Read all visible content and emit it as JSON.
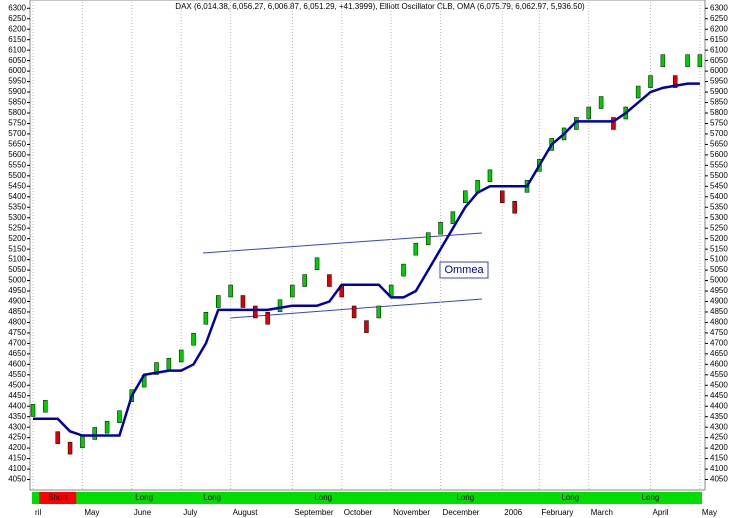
{
  "chart_data": {
    "type": "ohlc",
    "title": "DAX (6,014.38, 6,056.27, 6,006.87, 6,051.29, +41.3999), Elliott Oscillator CLB, OMA (6,075.79, 6,062.97, 5,936.50)",
    "annotation": "Ommea",
    "categories": [
      "ril",
      null,
      null,
      null,
      "May",
      null,
      null,
      null,
      "June",
      null,
      null,
      null,
      "July",
      null,
      null,
      null,
      "August",
      null,
      null,
      null,
      null,
      "September",
      null,
      null,
      null,
      "October",
      null,
      null,
      null,
      "November",
      null,
      null,
      null,
      "December",
      null,
      null,
      null,
      null,
      "2006",
      null,
      null,
      "February",
      null,
      null,
      null,
      "March",
      null,
      null,
      null,
      null,
      "April",
      null,
      null,
      null,
      "May"
    ],
    "series": [
      {
        "name": "DAX",
        "color": "#000000",
        "up_color": "#00cc00",
        "down_color": "#dd0000",
        "values": [
          4380,
          4400,
          4250,
          4200,
          4230,
          4270,
          4300,
          4350,
          4450,
          4520,
          4580,
          4600,
          4640,
          4720,
          4820,
          4900,
          4950,
          4900,
          4850,
          4820,
          4880,
          4950,
          5000,
          5080,
          5000,
          4950,
          4850,
          4780,
          4850,
          4950,
          5050,
          5150,
          5200,
          5250,
          5300,
          5400,
          5450,
          5500,
          5400,
          5350,
          5450,
          5550,
          5650,
          5700,
          5750,
          5800,
          5850,
          5750,
          5800,
          5900,
          5950,
          6050,
          5950,
          6050,
          6050
        ]
      },
      {
        "name": "OMA",
        "color": "#0000aa",
        "values": [
          4340,
          4340,
          4340,
          4280,
          4260,
          4260,
          4260,
          4260,
          4450,
          4550,
          4560,
          4570,
          4570,
          4600,
          4700,
          4860,
          4860,
          4860,
          4860,
          4860,
          4870,
          4880,
          4880,
          4880,
          4900,
          4980,
          4980,
          4980,
          4980,
          4920,
          4920,
          4950,
          5050,
          5150,
          5250,
          5350,
          5420,
          5450,
          5450,
          5450,
          5450,
          5550,
          5650,
          5700,
          5760,
          5760,
          5760,
          5760,
          5800,
          5850,
          5900,
          5920,
          5930,
          5940,
          5940
        ]
      }
    ],
    "bands": [
      {
        "label": "Short",
        "from": 1,
        "to": 3,
        "color": "#ff0000"
      },
      {
        "label": "Long",
        "from": 7,
        "to": 11,
        "color": "#00dd00"
      },
      {
        "label": "Long",
        "from": 13,
        "to": 16,
        "color": "#00dd00"
      },
      {
        "label": "Long",
        "from": 23,
        "to": 24,
        "color": "#00dd00"
      },
      {
        "label": "Long",
        "from": 30,
        "to": 40,
        "color": "#00dd00"
      },
      {
        "label": "Long",
        "from": 41,
        "to": 46,
        "color": "#00dd00"
      },
      {
        "label": "Long",
        "from": 48,
        "to": 52,
        "color": "#00dd00"
      }
    ],
    "ylim": [
      4000,
      6330
    ],
    "yticks": [
      4050,
      4100,
      4150,
      4200,
      4250,
      4300,
      4350,
      4400,
      4450,
      4500,
      4550,
      4600,
      4650,
      4700,
      4750,
      4800,
      4850,
      4900,
      4950,
      5000,
      5050,
      5100,
      5150,
      5200,
      5250,
      5300,
      5350,
      5400,
      5450,
      5500,
      5550,
      5600,
      5650,
      5700,
      5750,
      5800,
      5850,
      5900,
      5950,
      6000,
      6050,
      6100,
      6150,
      6200,
      6250,
      6300
    ],
    "grid": true
  }
}
